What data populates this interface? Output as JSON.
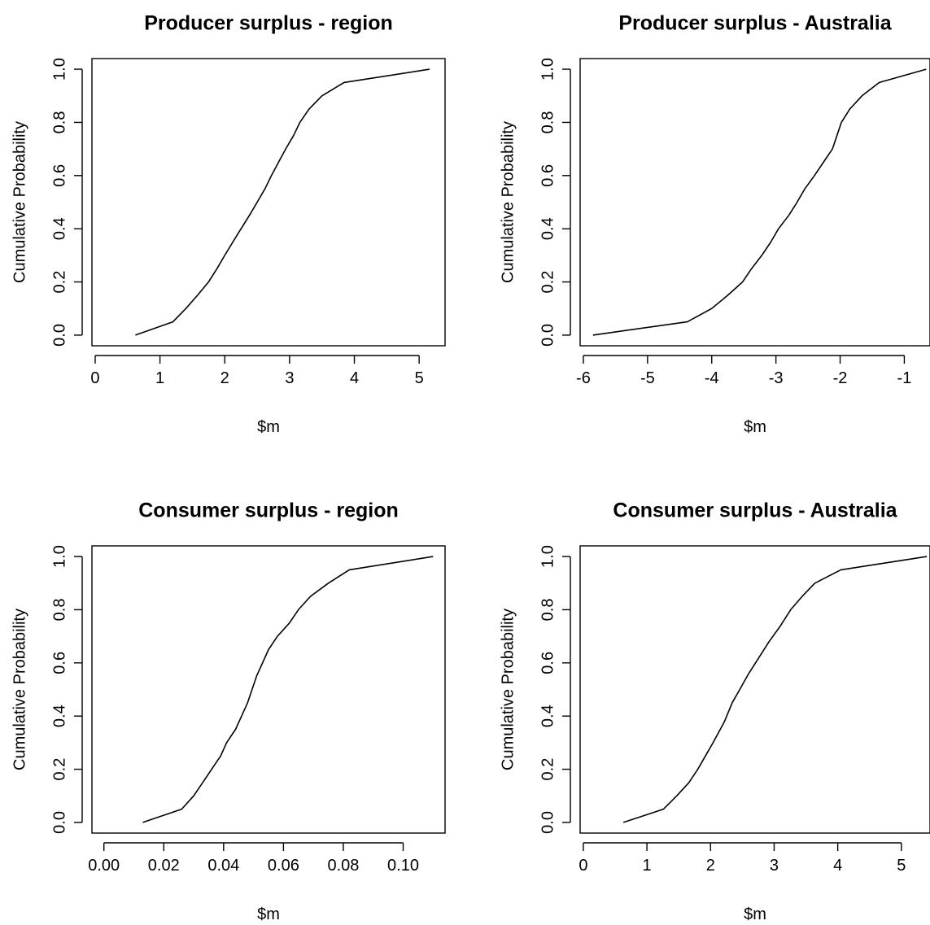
{
  "chart_data": [
    {
      "type": "line",
      "title": "Producer surplus - region",
      "xlabel": "$m",
      "ylabel": "Cumulative Probability",
      "xlim": [
        -0.05,
        5.4
      ],
      "ylim": [
        -0.04,
        1.04
      ],
      "xticks": [
        "0",
        "1",
        "2",
        "3",
        "4",
        "5"
      ],
      "xtick_values": [
        0,
        1,
        2,
        3,
        4,
        5
      ],
      "yticks": [
        "0.0",
        "0.2",
        "0.4",
        "0.6",
        "0.8",
        "1.0"
      ],
      "ytick_values": [
        0,
        0.2,
        0.4,
        0.6,
        0.8,
        1.0
      ],
      "grid": false,
      "series": [
        {
          "x": [
            0.62,
            1.2,
            1.4,
            1.58,
            1.75,
            1.88,
            2.0,
            2.2,
            2.38,
            2.5,
            2.62,
            2.72,
            2.83,
            2.94,
            3.06,
            3.16,
            3.3,
            3.5,
            3.84,
            5.16
          ],
          "y": [
            0.0,
            0.05,
            0.1,
            0.15,
            0.2,
            0.25,
            0.3,
            0.38,
            0.45,
            0.5,
            0.55,
            0.6,
            0.65,
            0.7,
            0.75,
            0.8,
            0.85,
            0.9,
            0.95,
            1.0
          ]
        }
      ]
    },
    {
      "type": "line",
      "title": "Producer surplus - Australia",
      "xlabel": "$m",
      "ylabel": "Cumulative Probability",
      "xlim": [
        -6.05,
        -0.6
      ],
      "ylim": [
        -0.04,
        1.04
      ],
      "xticks": [
        "-6",
        "-5",
        "-4",
        "-3",
        "-2",
        "-1"
      ],
      "xtick_values": [
        -6,
        -5,
        -4,
        -3,
        -2,
        -1
      ],
      "yticks": [
        "0.0",
        "0.2",
        "0.4",
        "0.6",
        "0.8",
        "1.0"
      ],
      "ytick_values": [
        0,
        0.2,
        0.4,
        0.6,
        0.8,
        1.0
      ],
      "grid": false,
      "series": [
        {
          "x": [
            -5.85,
            -4.38,
            -4.0,
            -3.75,
            -3.52,
            -3.38,
            -3.22,
            -3.08,
            -2.96,
            -2.8,
            -2.67,
            -2.55,
            -2.4,
            -2.26,
            -2.12,
            -1.98,
            -1.85,
            -1.66,
            -1.39,
            -0.66
          ],
          "y": [
            0.0,
            0.05,
            0.1,
            0.15,
            0.2,
            0.25,
            0.3,
            0.35,
            0.4,
            0.45,
            0.5,
            0.55,
            0.6,
            0.65,
            0.7,
            0.8,
            0.85,
            0.9,
            0.95,
            1.0
          ]
        }
      ]
    },
    {
      "type": "line",
      "title": "Consumer surplus - region",
      "xlabel": "$m",
      "ylabel": "Cumulative Probability",
      "xlim": [
        -0.004,
        0.114
      ],
      "ylim": [
        -0.04,
        1.04
      ],
      "xticks": [
        "0.00",
        "0.02",
        "0.04",
        "0.06",
        "0.08",
        "0.10"
      ],
      "xtick_values": [
        0,
        0.02,
        0.04,
        0.06,
        0.08,
        0.1
      ],
      "yticks": [
        "0.0",
        "0.2",
        "0.4",
        "0.6",
        "0.8",
        "1.0"
      ],
      "ytick_values": [
        0,
        0.2,
        0.4,
        0.6,
        0.8,
        1.0
      ],
      "grid": false,
      "series": [
        {
          "x": [
            0.013,
            0.026,
            0.03,
            0.033,
            0.036,
            0.039,
            0.041,
            0.044,
            0.048,
            0.051,
            0.055,
            0.058,
            0.062,
            0.065,
            0.069,
            0.075,
            0.082,
            0.11
          ],
          "y": [
            0.0,
            0.05,
            0.1,
            0.15,
            0.2,
            0.25,
            0.3,
            0.35,
            0.45,
            0.55,
            0.65,
            0.7,
            0.75,
            0.8,
            0.85,
            0.9,
            0.95,
            1.0
          ]
        }
      ]
    },
    {
      "type": "line",
      "title": "Consumer surplus - Australia",
      "xlabel": "$m",
      "ylabel": "Cumulative Probability",
      "xlim": [
        -0.05,
        5.45
      ],
      "ylim": [
        -0.04,
        1.04
      ],
      "xticks": [
        "0",
        "1",
        "2",
        "3",
        "4",
        "5"
      ],
      "xtick_values": [
        0,
        1,
        2,
        3,
        4,
        5
      ],
      "yticks": [
        "0.0",
        "0.2",
        "0.4",
        "0.6",
        "0.8",
        "1.0"
      ],
      "ytick_values": [
        0,
        0.2,
        0.4,
        0.6,
        0.8,
        1.0
      ],
      "grid": false,
      "series": [
        {
          "x": [
            0.63,
            1.26,
            1.47,
            1.66,
            1.8,
            1.92,
            2.04,
            2.22,
            2.34,
            2.46,
            2.6,
            2.76,
            2.92,
            3.1,
            3.26,
            3.44,
            3.64,
            4.05,
            5.4
          ],
          "y": [
            0.0,
            0.05,
            0.1,
            0.15,
            0.2,
            0.25,
            0.3,
            0.38,
            0.45,
            0.5,
            0.56,
            0.62,
            0.68,
            0.74,
            0.8,
            0.85,
            0.9,
            0.95,
            1.0
          ]
        }
      ]
    }
  ]
}
